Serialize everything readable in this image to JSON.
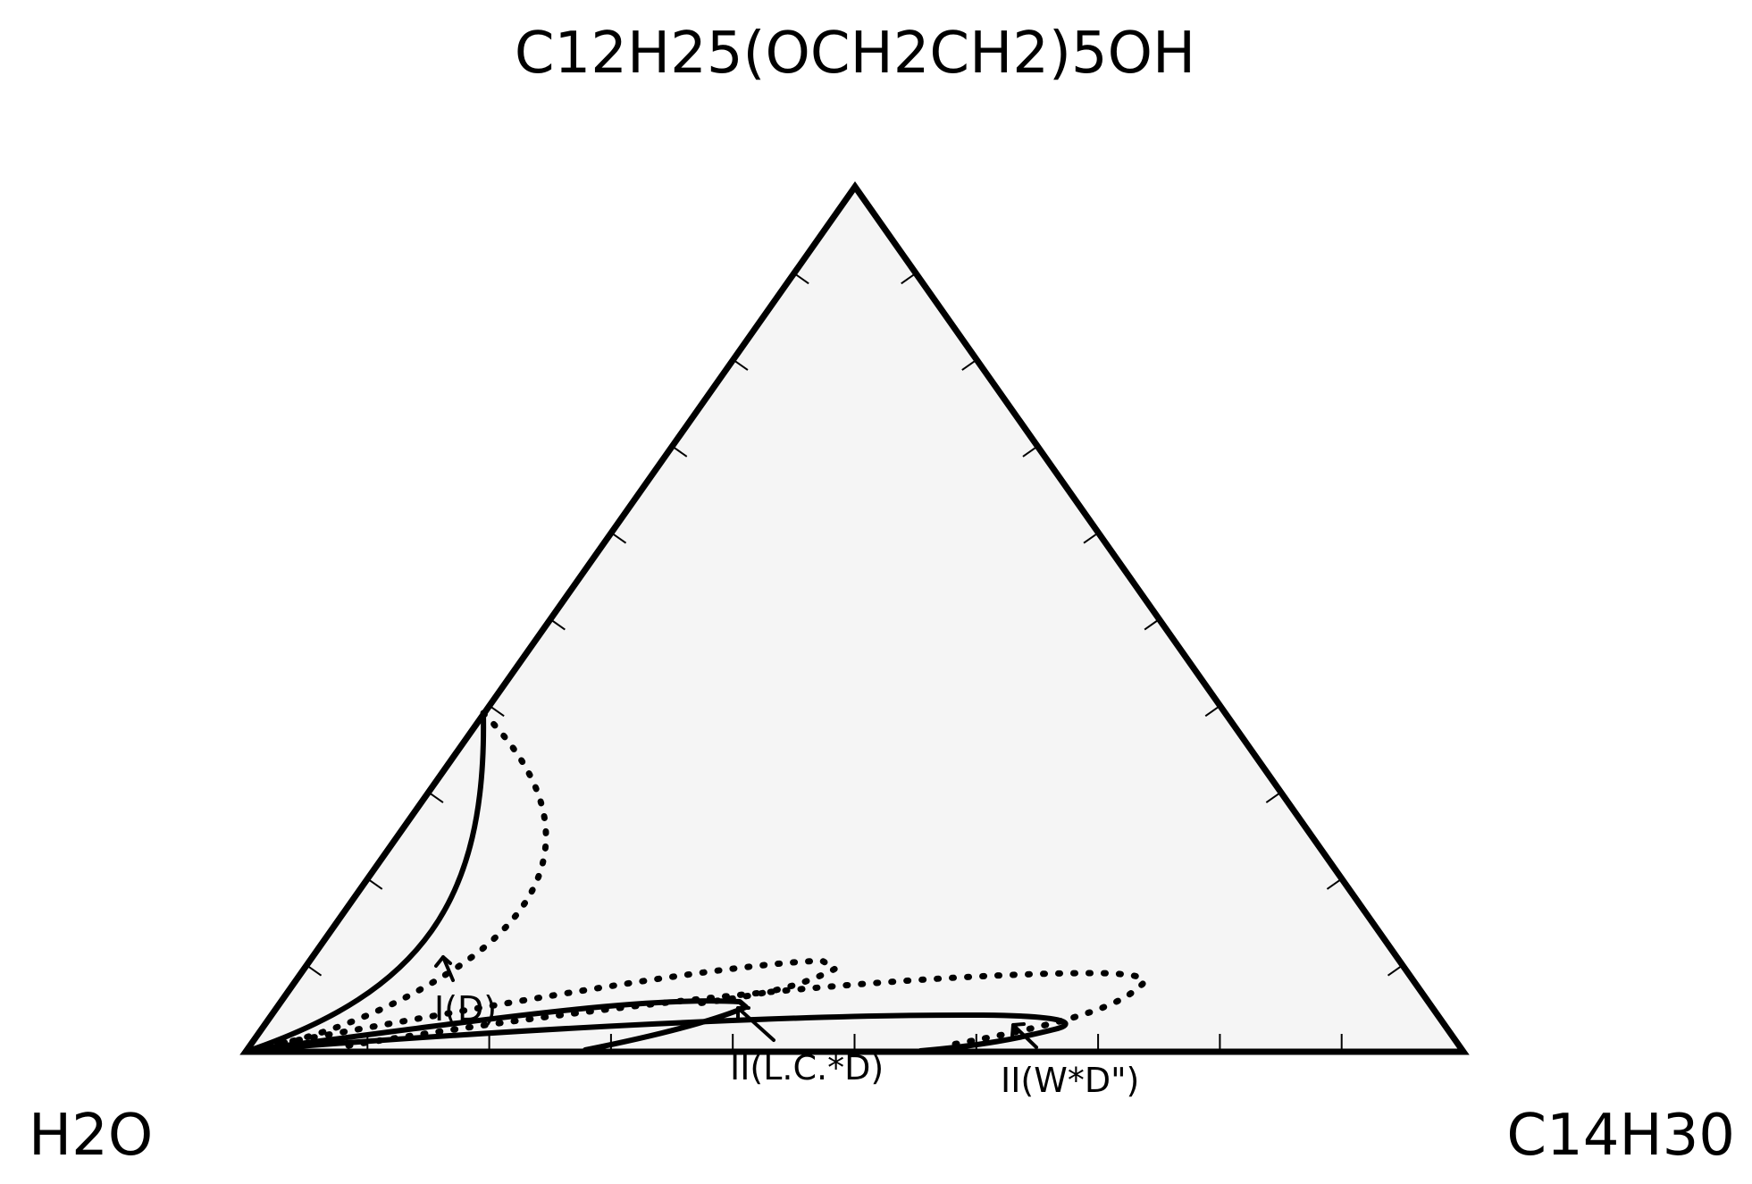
{
  "diagram": {
    "type": "ternary-phase-diagram",
    "vertices": {
      "top": "C12H25(OCH2CH2)5OH",
      "left": "H2O",
      "right": "C14H30"
    },
    "region_labels": [
      {
        "key": "d",
        "text": "I(D)"
      },
      {
        "key": "lcd",
        "text": "II(L.C.*D)"
      },
      {
        "key": "wd",
        "text": "II(W*D\")"
      }
    ],
    "line_styles": [
      "solid",
      "dotted"
    ],
    "colors": {
      "triangle_fill": "#f5f5f5",
      "stroke": "#000000",
      "background": "#ffffff"
    }
  }
}
